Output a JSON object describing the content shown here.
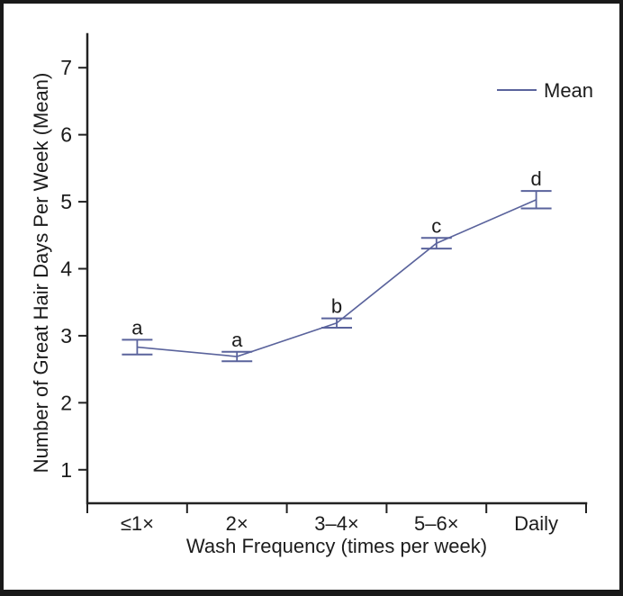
{
  "figure": {
    "background": "#ffffff",
    "border_color": "#191919"
  },
  "legend": {
    "label": "Mean"
  },
  "chart_data": {
    "type": "line",
    "title": "",
    "xlabel": "Wash Frequency (times per week)",
    "ylabel": "Number of Great Hair Days Per Week (Mean)",
    "categories": [
      "≤1×",
      "2×",
      "3–4×",
      "5–6×",
      "Daily"
    ],
    "series": [
      {
        "name": "Mean",
        "values": [
          2.83,
          2.69,
          3.19,
          4.38,
          5.03
        ],
        "errors": [
          0.11,
          0.07,
          0.07,
          0.08,
          0.13
        ],
        "point_labels": [
          "a",
          "a",
          "b",
          "c",
          "d"
        ],
        "color": "#5a639c"
      }
    ],
    "yticks": [
      1,
      2,
      3,
      4,
      5,
      6,
      7
    ],
    "ylim": [
      0.5,
      7.5
    ],
    "grid": false,
    "legend_position": "top-right",
    "error_bar_style": "caps",
    "axis_color": "#222222",
    "text_color": "#1c1c1c"
  }
}
